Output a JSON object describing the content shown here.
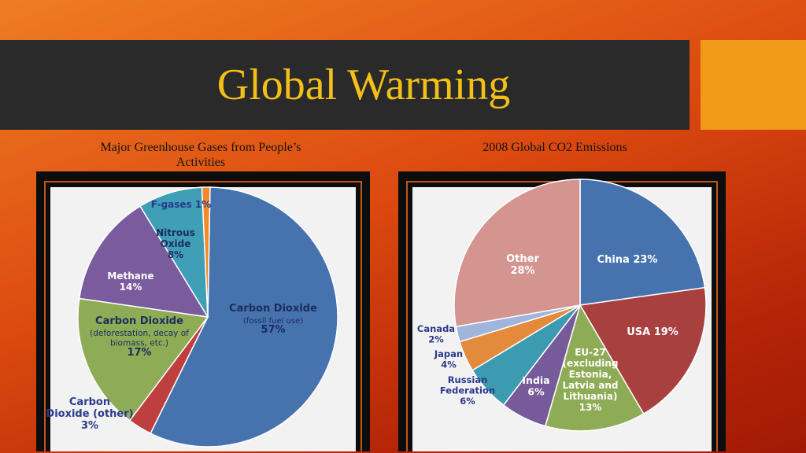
{
  "slide": {
    "title": "Global Warming"
  },
  "captions": {
    "left": [
      "Major Greenhouse Gases from People’s",
      "Activities"
    ],
    "right": "2008 Global CO2 Emissions"
  },
  "colors": {
    "title": "#f3c018",
    "accent": "#f19a1a",
    "background": "#dc4a10",
    "title_bar": "#2a2a2a"
  },
  "chart_data": [
    {
      "type": "pie",
      "title": "Major Greenhouse Gases from People’s Activities",
      "start_angle_deg": 1,
      "direction": "clockwise",
      "slices": [
        {
          "name": "Carbon Dioxide (fossil fuel use)",
          "value": 57,
          "color": "#4673ae",
          "label_lines": [
            "Carbon Dioxide",
            "(fossil fuel use)",
            "57%"
          ],
          "label_color": "#1c2b5e"
        },
        {
          "name": "Carbon Dioxide (other)",
          "value": 3,
          "color": "#be3f3e",
          "label_lines": [
            "Carbon",
            "Dioxide (other)",
            "3%"
          ],
          "label_color": "#2a3a8c"
        },
        {
          "name": "Carbon Dioxide (deforestation, decay of biomass, etc.)",
          "value": 17,
          "color": "#8eac56",
          "label_lines": [
            "Carbon Dioxide",
            "(deforestation, decay of",
            "biomass, etc.)",
            "17%"
          ],
          "label_color": "#1c2b5e"
        },
        {
          "name": "Methane",
          "value": 14,
          "color": "#7a5c9e",
          "label_lines": [
            "Methane",
            "14%"
          ],
          "label_color": "#ffffff"
        },
        {
          "name": "Nitrous Oxide",
          "value": 8,
          "color": "#3e9fb6",
          "label_lines": [
            "Nitrous",
            "Oxide",
            "8%"
          ],
          "label_color": "#1c2b5e"
        },
        {
          "name": "F-gases",
          "value": 1,
          "color": "#f08a2a",
          "label_lines": [
            "F-gases 1%"
          ],
          "label_color": "#2a3a8c"
        }
      ]
    },
    {
      "type": "pie",
      "title": "2008 Global CO2 Emissions",
      "start_angle_deg": 0,
      "direction": "clockwise",
      "slices": [
        {
          "name": "China",
          "value": 23,
          "color": "#4673ae",
          "label_lines": [
            "China 23%"
          ],
          "label_color": "#ffffff"
        },
        {
          "name": "USA",
          "value": 19,
          "color": "#a8403f",
          "label_lines": [
            "USA 19%"
          ],
          "label_color": "#ffffff"
        },
        {
          "name": "EU-27 (excluding Estonia, Latvia and Lithuania)",
          "value": 13,
          "color": "#8eac56",
          "label_lines": [
            "EU-27",
            "(excluding",
            "Estonia,",
            "Latvia and",
            "Lithuania)",
            "13%"
          ],
          "label_color": "#ffffff"
        },
        {
          "name": "India",
          "value": 6,
          "color": "#775a9a",
          "label_lines": [
            "India",
            "6%"
          ],
          "label_color": "#ffffff"
        },
        {
          "name": "Russian Federation",
          "value": 6,
          "color": "#3c9bb0",
          "label_lines": [
            "Russian",
            "Federation",
            "6%"
          ],
          "label_color": "#2a3a8c"
        },
        {
          "name": "Japan",
          "value": 4,
          "color": "#e38a3c",
          "label_lines": [
            "Japan",
            "4%"
          ],
          "label_color": "#2a3a8c"
        },
        {
          "name": "Canada",
          "value": 2,
          "color": "#9fb5dc",
          "label_lines": [
            "Canada",
            "2%"
          ],
          "label_color": "#2a3a8c"
        },
        {
          "name": "Other",
          "value": 28,
          "color": "#d49490",
          "label_lines": [
            "Other",
            "28%"
          ],
          "label_color": "#ffffff"
        }
      ]
    }
  ]
}
